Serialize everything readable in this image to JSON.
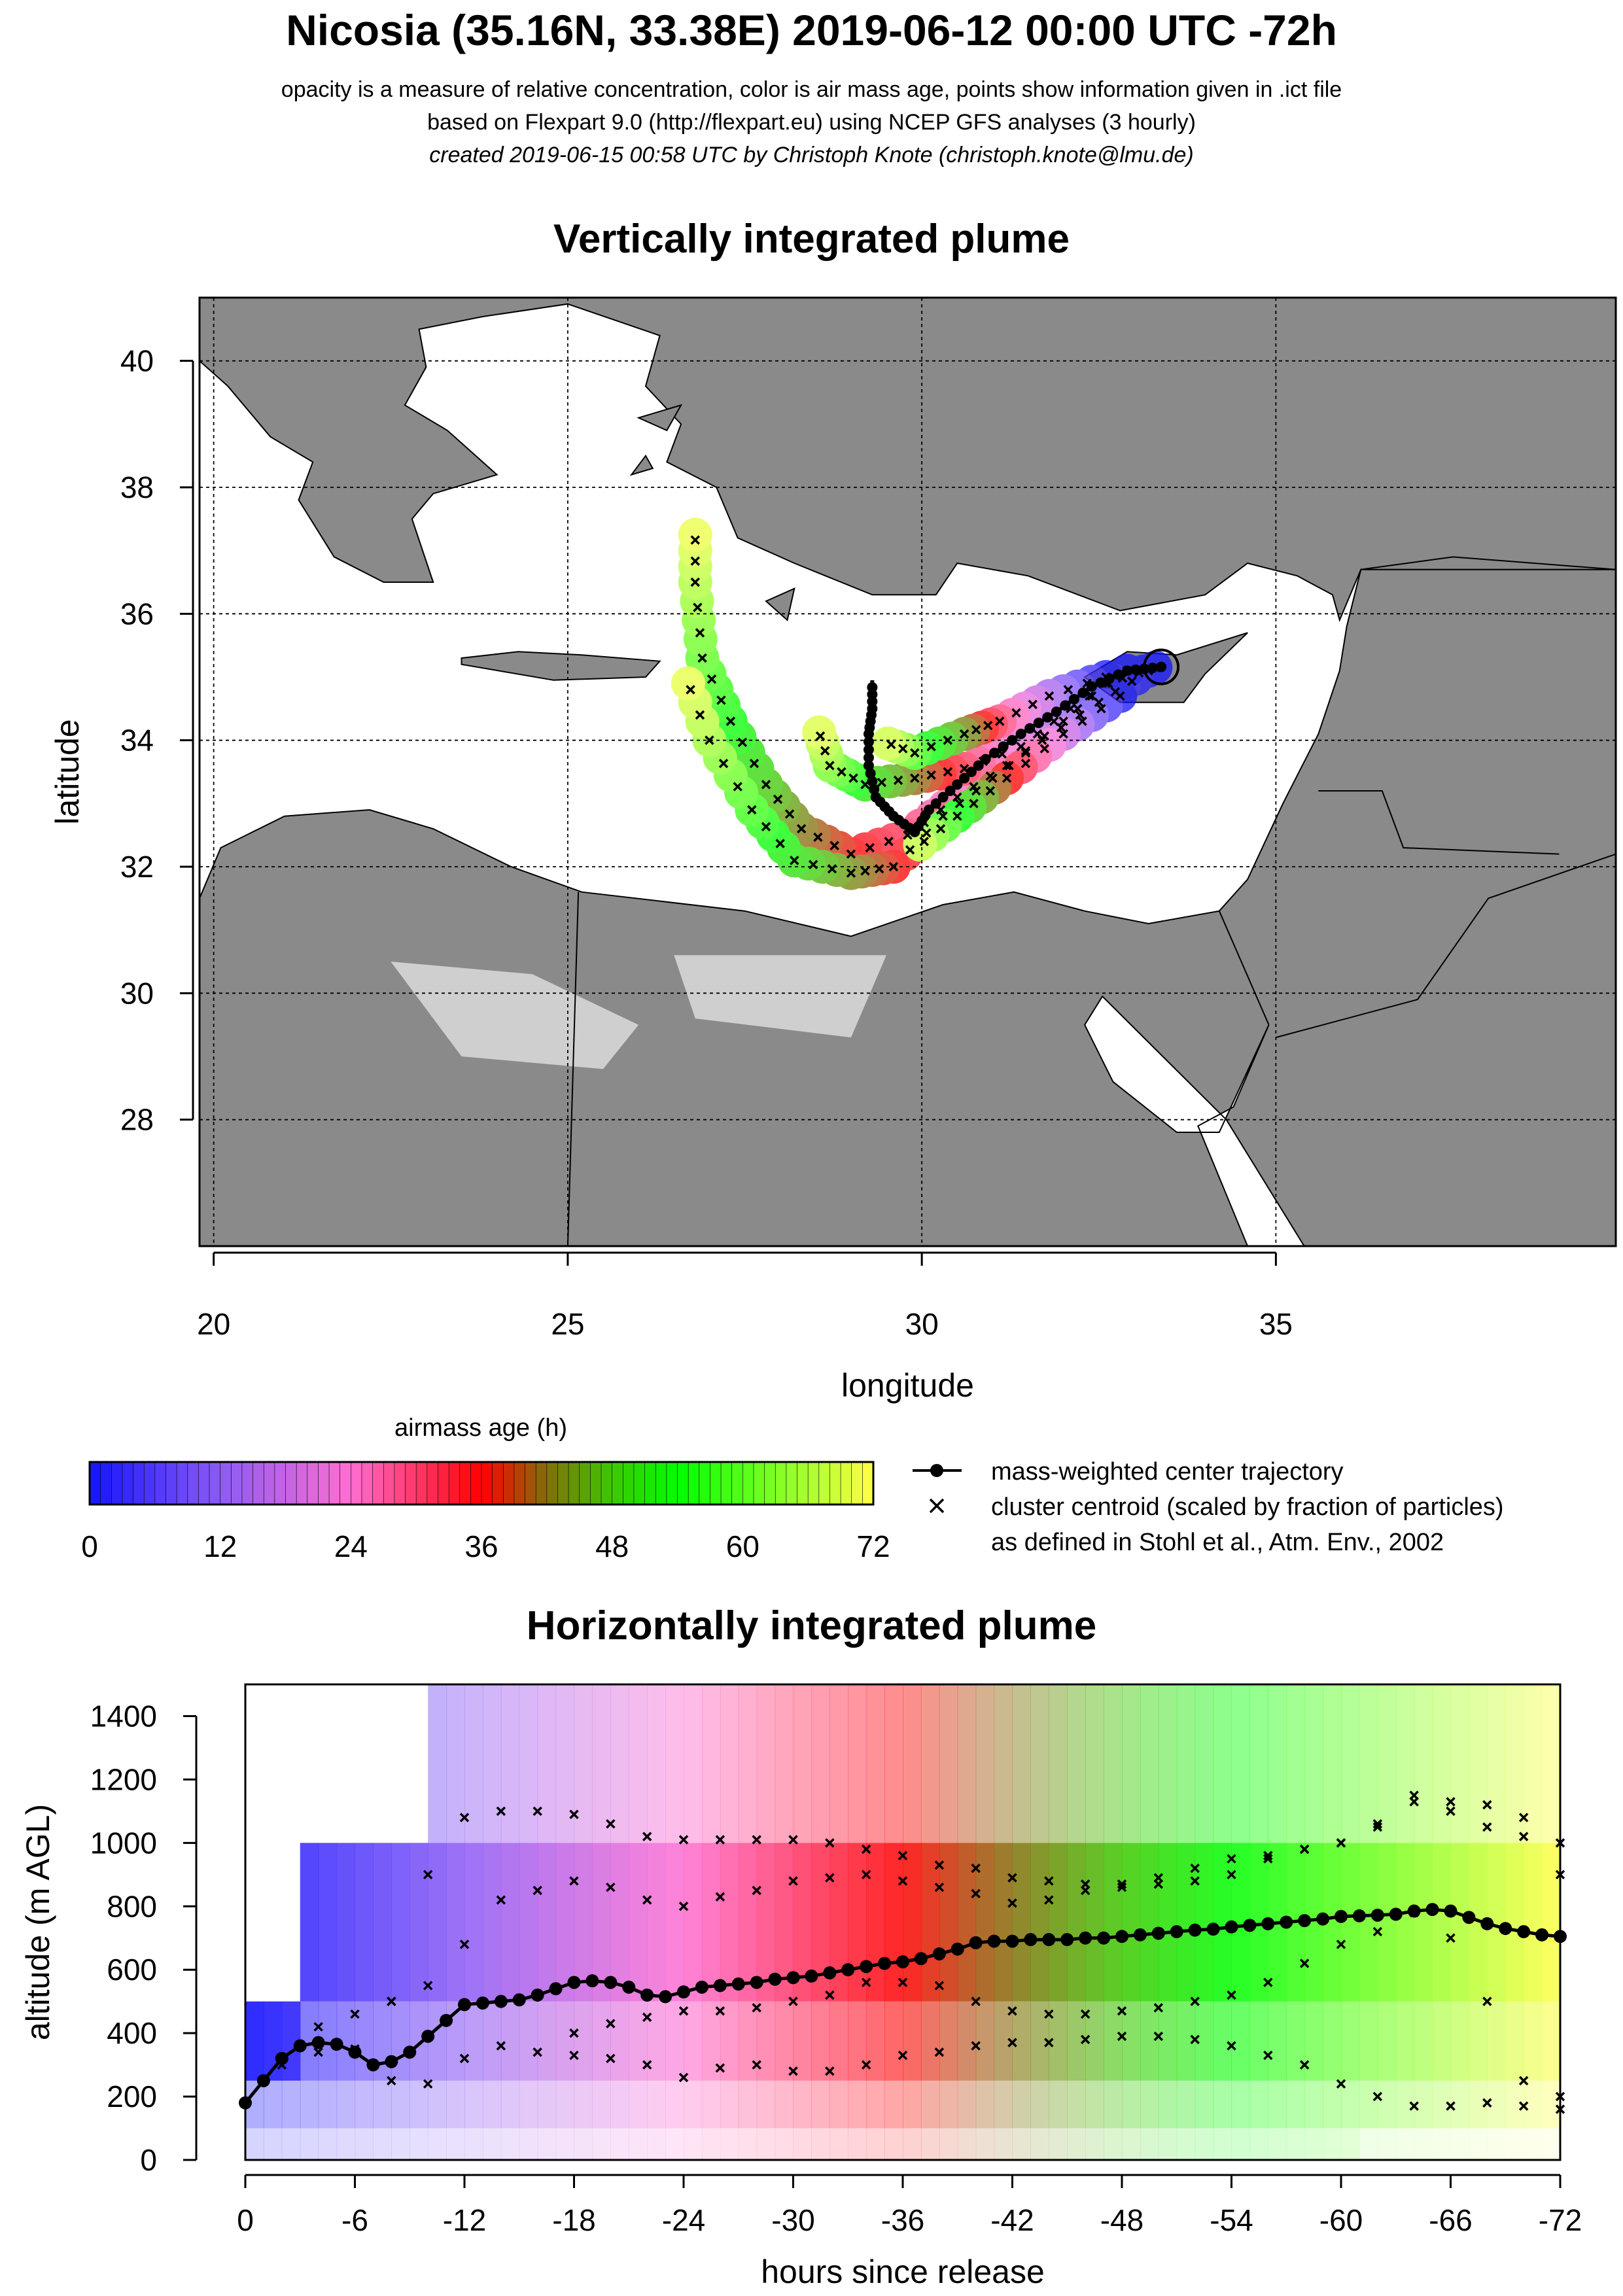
{
  "header": {
    "title": "Nicosia (35.16N, 33.38E) 2019-06-12 00:00 UTC -72h",
    "subtitle_1": "opacity is a measure of relative concentration, color is air mass age, points show information given in .ict file",
    "subtitle_2": "based on Flexpart 9.0 (http://flexpart.eu) using NCEP GFS analyses (3 hourly)",
    "subtitle_3": "created 2019-06-15 00:58 UTC by Christoph Knote (christoph.knote@lmu.de)"
  },
  "colors": {
    "land": "#8a8a8a",
    "land_light": "#cfcfcf",
    "sea": "#ffffff",
    "age_0": "#1515ff",
    "age_24": "#ff60d0",
    "age_36": "#ff0000",
    "age_54": "#00ff00",
    "age_72": "#ffff40"
  },
  "chart_data": [
    {
      "type": "scatter",
      "title": "Vertically integrated plume",
      "xlabel": "longitude",
      "ylabel": "latitude",
      "xlim": [
        19.8,
        39.8
      ],
      "ylim": [
        26.0,
        41.0
      ],
      "xticks": [
        "20",
        "25",
        "30",
        "35"
      ],
      "yticks": [
        "28",
        "30",
        "32",
        "34",
        "36",
        "38",
        "40"
      ],
      "grid": true,
      "release_site": {
        "lon": 33.38,
        "lat": 35.16
      },
      "series": [
        {
          "name": "mass-weighted center trajectory",
          "points": [
            [
              33.38,
              35.16
            ],
            [
              32.9,
              35.1
            ],
            [
              32.4,
              34.85
            ],
            [
              31.9,
              34.45
            ],
            [
              31.4,
              34.1
            ],
            [
              30.9,
              33.7
            ],
            [
              30.5,
              33.3
            ],
            [
              30.1,
              32.9
            ],
            [
              29.9,
              32.55
            ],
            [
              29.6,
              32.8
            ],
            [
              29.35,
              33.1
            ],
            [
              29.25,
              33.6
            ],
            [
              29.25,
              34.1
            ],
            [
              29.3,
              34.5
            ],
            [
              29.3,
              34.95
            ]
          ]
        },
        {
          "name": "cluster centroid (scaled by fraction of particles)",
          "tracks": [
            [
              [
                33.3,
                35.15
              ],
              [
                32.6,
                34.9
              ],
              [
                32.0,
                34.3
              ],
              [
                31.2,
                33.6
              ],
              [
                30.5,
                33.1
              ],
              [
                29.8,
                32.5
              ],
              [
                29.0,
                32.2
              ],
              [
                28.3,
                32.6
              ],
              [
                27.8,
                33.3
              ],
              [
                27.3,
                34.3
              ],
              [
                26.9,
                35.3
              ],
              [
                26.8,
                36.5
              ],
              [
                26.8,
                37.5
              ]
            ],
            [
              [
                33.2,
                35.1
              ],
              [
                32.5,
                34.6
              ],
              [
                31.7,
                34.0
              ],
              [
                31.0,
                33.4
              ],
              [
                30.3,
                32.8
              ],
              [
                29.6,
                32.0
              ],
              [
                29.0,
                31.9
              ],
              [
                28.2,
                32.1
              ],
              [
                27.6,
                32.9
              ],
              [
                27.0,
                34.0
              ],
              [
                26.6,
                35.2
              ]
            ],
            [
              [
                32.9,
                35.1
              ],
              [
                32.1,
                34.5
              ],
              [
                31.4,
                33.9
              ],
              [
                30.6,
                33.55
              ],
              [
                29.9,
                33.4
              ],
              [
                29.2,
                33.3
              ],
              [
                28.7,
                33.6
              ],
              [
                28.5,
                34.3
              ]
            ],
            [
              [
                32.6,
                35.0
              ],
              [
                31.8,
                34.7
              ],
              [
                31.1,
                34.3
              ],
              [
                30.6,
                34.1
              ],
              [
                29.9,
                33.8
              ],
              [
                29.4,
                34.0
              ]
            ],
            [
              [
                32.8,
                34.7
              ],
              [
                32.0,
                34.1
              ],
              [
                31.2,
                33.4
              ],
              [
                30.5,
                32.8
              ],
              [
                29.8,
                32.2
              ]
            ]
          ]
        }
      ],
      "colorbar": {
        "label": "airmass age (h)",
        "ticks": [
          "0",
          "12",
          "24",
          "36",
          "48",
          "60",
          "72"
        ]
      },
      "legend": {
        "placement": "bottom-right",
        "entries": [
          "mass-weighted center trajectory",
          "cluster centroid (scaled by fraction of particles)",
          "as defined in Stohl et al., Atm. Env., 2002"
        ]
      }
    },
    {
      "type": "heatmap",
      "title": "Horizontally integrated plume",
      "xlabel": "hours since release",
      "ylabel": "altitude (m AGL)",
      "xlim": [
        0,
        -72
      ],
      "ylim": [
        0,
        1500
      ],
      "xticks": [
        "0",
        "-6",
        "-12",
        "-18",
        "-24",
        "-30",
        "-36",
        "-42",
        "-48",
        "-54",
        "-60",
        "-66",
        "-72"
      ],
      "yticks": [
        "0",
        "200",
        "400",
        "600",
        "800",
        "1000",
        "1200",
        "1400"
      ],
      "series": [
        {
          "name": "mass-weighted center trajectory",
          "x": [
            0,
            -1,
            -2,
            -3,
            -4,
            -5,
            -6,
            -7,
            -8,
            -9,
            -10,
            -11,
            -12,
            -13,
            -14,
            -15,
            -16,
            -17,
            -18,
            -19,
            -20,
            -21,
            -22,
            -23,
            -24,
            -25,
            -26,
            -27,
            -28,
            -29,
            -30,
            -31,
            -32,
            -33,
            -34,
            -35,
            -36,
            -37,
            -38,
            -39,
            -40,
            -41,
            -42,
            -43,
            -44,
            -45,
            -46,
            -47,
            -48,
            -49,
            -50,
            -51,
            -52,
            -53,
            -54,
            -55,
            -56,
            -57,
            -58,
            -59,
            -60,
            -61,
            -62,
            -63,
            -64,
            -65,
            -66,
            -67,
            -68,
            -69,
            -70,
            -71,
            -72
          ],
          "y": [
            180,
            250,
            320,
            360,
            370,
            365,
            340,
            300,
            310,
            340,
            390,
            440,
            490,
            495,
            500,
            505,
            520,
            540,
            560,
            565,
            560,
            545,
            520,
            515,
            530,
            545,
            550,
            555,
            560,
            570,
            575,
            580,
            590,
            600,
            610,
            620,
            625,
            635,
            650,
            665,
            685,
            690,
            690,
            695,
            695,
            695,
            700,
            700,
            705,
            710,
            715,
            720,
            725,
            728,
            735,
            740,
            745,
            750,
            755,
            760,
            768,
            770,
            772,
            775,
            785,
            790,
            785,
            765,
            745,
            730,
            720,
            710,
            705
          ]
        },
        {
          "name": "cluster centroid (scaled by fraction of particles)",
          "tracks": [
            {
              "x": [
                -2,
                -4,
                -6,
                -8,
                -10,
                -12,
                -14,
                -16,
                -18,
                -20,
                -22,
                -24,
                -26,
                -28,
                -30,
                -32,
                -34,
                -36,
                -38,
                -40,
                -42,
                -44,
                -46,
                -48,
                -50,
                -52,
                -54,
                -56,
                -58,
                -60,
                -62,
                -64,
                -66,
                -68,
                -70,
                -72
              ],
              "y": [
                300,
                340,
                350,
                500,
                900,
                1080,
                1100,
                1100,
                1090,
                1060,
                1020,
                1010,
                1010,
                1010,
                1010,
                1000,
                980,
                960,
                930,
                920,
                890,
                880,
                870,
                860,
                870,
                880,
                900,
                950,
                980,
                1000,
                1050,
                1150,
                1130,
                1120,
                1080,
                1000
              ]
            },
            {
              "x": [
                -4,
                -6,
                -8,
                -10,
                -12,
                -14,
                -16,
                -18,
                -20,
                -22,
                -24,
                -26,
                -28,
                -30,
                -32,
                -34,
                -36,
                -38,
                -40,
                -42,
                -44,
                -46,
                -48,
                -50,
                -52,
                -54,
                -56,
                -58,
                -60,
                -62,
                -64,
                -66,
                -68,
                -70,
                -72
              ],
              "y": [
                420,
                460,
                500,
                550,
                680,
                820,
                850,
                880,
                860,
                820,
                800,
                830,
                850,
                880,
                890,
                900,
                880,
                860,
                840,
                810,
                820,
                850,
                870,
                890,
                920,
                950,
                960,
                980,
                1000,
                1060,
                1130,
                1100,
                1050,
                1020,
                900
              ]
            },
            {
              "x": [
                -8,
                -10,
                -12,
                -14,
                -16,
                -18,
                -20,
                -22,
                -24,
                -26,
                -28,
                -30,
                -32,
                -34,
                -36,
                -38,
                -40,
                -42,
                -44,
                -46,
                -48,
                -50,
                -52,
                -54,
                -56,
                -58,
                -60,
                -62,
                -64,
                -66,
                -68,
                -70,
                -72
              ],
              "y": [
                250,
                240,
                320,
                360,
                340,
                330,
                320,
                300,
                260,
                290,
                300,
                280,
                280,
                300,
                330,
                340,
                360,
                370,
                370,
                380,
                390,
                390,
                380,
                360,
                330,
                300,
                240,
                200,
                170,
                170,
                180,
                170,
                160
              ]
            },
            {
              "x": [
                -18,
                -20,
                -22,
                -24,
                -26,
                -28,
                -30,
                -32,
                -34,
                -36,
                -38,
                -40,
                -42,
                -44,
                -46,
                -48,
                -50,
                -52,
                -54,
                -56,
                -58,
                -60,
                -62,
                -64,
                -66,
                -68,
                -70,
                -72
              ],
              "y": [
                400,
                430,
                450,
                470,
                470,
                480,
                500,
                520,
                560,
                560,
                550,
                500,
                470,
                460,
                460,
                470,
                480,
                500,
                520,
                560,
                620,
                680,
                720,
                780,
                700,
                500,
                250,
                200
              ]
            }
          ]
        }
      ]
    }
  ]
}
